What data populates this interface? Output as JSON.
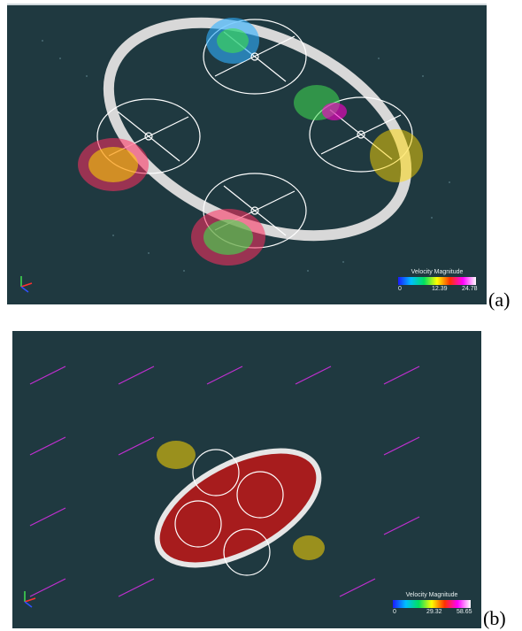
{
  "panel_a": {
    "caption": "(a)",
    "legend": {
      "title": "Velocity Magnitude",
      "min": "0",
      "mid": "12.39",
      "max": "24.78"
    }
  },
  "panel_b": {
    "caption": "(b)",
    "legend": {
      "title": "Velocity Magnitude",
      "min": "0",
      "mid": "29.32",
      "max": "58.65"
    }
  },
  "colors": {
    "background": "#1f3940",
    "shroud": "#e6e6e6",
    "vector_far": "#c030d0"
  },
  "icons": [
    "axis-triad-icon",
    "axis-triad-icon"
  ]
}
